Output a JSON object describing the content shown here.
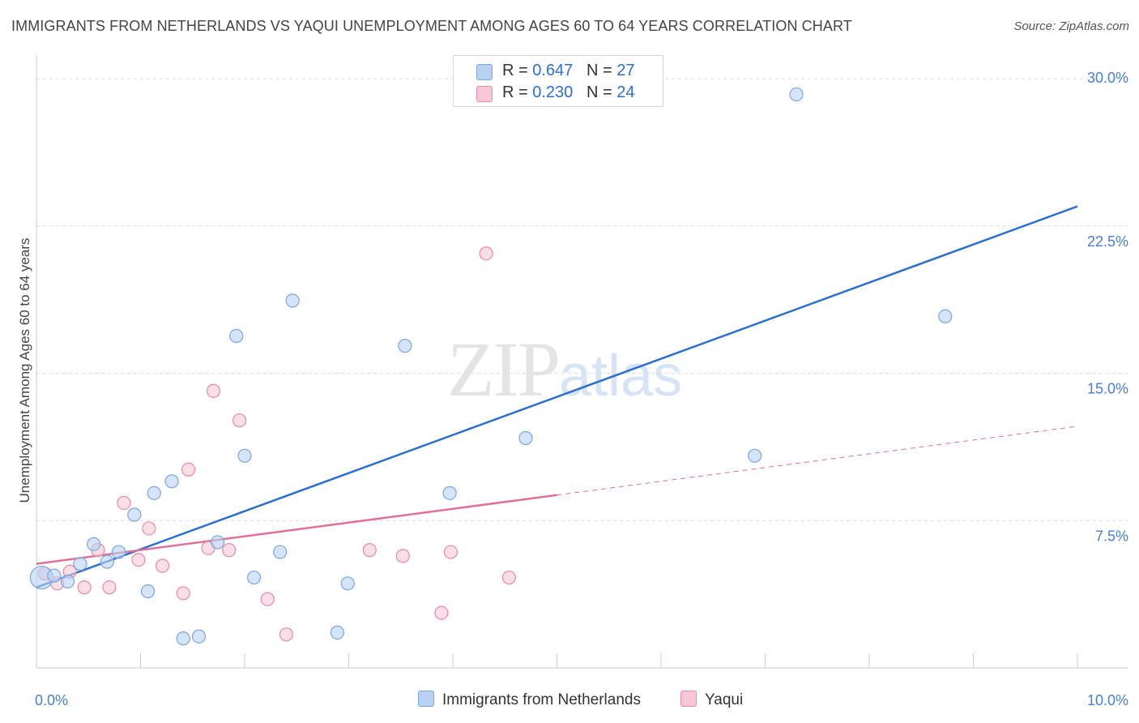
{
  "title": "IMMIGRANTS FROM NETHERLANDS VS YAQUI UNEMPLOYMENT AMONG AGES 60 TO 64 YEARS CORRELATION CHART",
  "source": "Source: ZipAtlas.com",
  "watermark": {
    "zip": "ZIP",
    "atlas": "atlas"
  },
  "colors": {
    "blue_fill": "#b9d2f3",
    "blue_stroke": "#7aa6e0",
    "blue_line": "#2e6fcc",
    "pink_fill": "#f8c8d6",
    "pink_stroke": "#e88aa8",
    "pink_line": "#e0709a",
    "grid": "#dddddd",
    "axis": "#cccccc"
  },
  "legend": {
    "rows": [
      {
        "r_label": "R = ",
        "r_value": "0.647",
        "n_label": "N = ",
        "n_value": "27"
      },
      {
        "r_label": "R = ",
        "r_value": "0.230",
        "n_label": "N = ",
        "n_value": "24"
      }
    ]
  },
  "chart_data": {
    "type": "scatter",
    "title": "IMMIGRANTS FROM NETHERLANDS VS YAQUI UNEMPLOYMENT AMONG AGES 60 TO 64 YEARS CORRELATION CHART",
    "xlabel": "",
    "ylabel": "Unemployment Among Ages 60 to 64 years",
    "xlim": [
      0,
      10
    ],
    "ylim": [
      0,
      31.2
    ],
    "x_tick_labels": [
      "0.0%",
      "10.0%"
    ],
    "y_ticks": [
      7.5,
      15.0,
      22.5,
      30.0
    ],
    "y_tick_labels": [
      "7.5%",
      "15.0%",
      "22.5%",
      "30.0%"
    ],
    "series": [
      {
        "name": "Immigrants from Netherlands",
        "color": "blue",
        "r": 0.647,
        "n": 27,
        "points": [
          [
            0.05,
            4.6,
            14
          ],
          [
            0.17,
            4.7,
            8
          ],
          [
            0.3,
            4.4,
            8
          ],
          [
            0.42,
            5.3,
            8
          ],
          [
            0.55,
            6.3,
            8
          ],
          [
            0.68,
            5.4,
            8
          ],
          [
            0.79,
            5.9,
            8
          ],
          [
            0.94,
            7.8,
            8
          ],
          [
            1.07,
            3.9,
            8
          ],
          [
            1.13,
            8.9,
            8
          ],
          [
            1.3,
            9.5,
            8
          ],
          [
            1.41,
            1.5,
            8
          ],
          [
            1.56,
            1.6,
            8
          ],
          [
            1.74,
            6.4,
            8
          ],
          [
            1.92,
            16.9,
            8
          ],
          [
            2.0,
            10.8,
            8
          ],
          [
            2.09,
            4.6,
            8
          ],
          [
            2.34,
            5.9,
            8
          ],
          [
            2.46,
            18.7,
            8
          ],
          [
            2.99,
            4.3,
            8
          ],
          [
            2.89,
            1.8,
            8
          ],
          [
            3.54,
            16.4,
            8
          ],
          [
            3.97,
            8.9,
            8
          ],
          [
            4.7,
            11.7,
            8
          ],
          [
            6.9,
            10.8,
            8
          ],
          [
            7.3,
            29.2,
            8
          ],
          [
            8.73,
            17.9,
            8
          ]
        ],
        "trend": {
          "x": [
            0.0,
            10.0
          ],
          "y": [
            4.1,
            23.5
          ],
          "dashed_from": null
        }
      },
      {
        "name": "Yaqui",
        "color": "pink",
        "r": 0.23,
        "n": 24,
        "points": [
          [
            0.08,
            4.8,
            8
          ],
          [
            0.2,
            4.3,
            8
          ],
          [
            0.32,
            4.9,
            8
          ],
          [
            0.46,
            4.1,
            8
          ],
          [
            0.59,
            6.0,
            8
          ],
          [
            0.7,
            4.1,
            8
          ],
          [
            0.84,
            8.4,
            8
          ],
          [
            0.98,
            5.5,
            8
          ],
          [
            1.08,
            7.1,
            8
          ],
          [
            1.21,
            5.2,
            8
          ],
          [
            1.41,
            3.8,
            8
          ],
          [
            1.46,
            10.1,
            8
          ],
          [
            1.65,
            6.1,
            8
          ],
          [
            1.7,
            14.1,
            8
          ],
          [
            1.85,
            6.0,
            8
          ],
          [
            1.95,
            12.6,
            8
          ],
          [
            2.22,
            3.5,
            8
          ],
          [
            2.4,
            1.7,
            8
          ],
          [
            3.2,
            6.0,
            8
          ],
          [
            3.52,
            5.7,
            8
          ],
          [
            3.89,
            2.8,
            8
          ],
          [
            3.98,
            5.9,
            8
          ],
          [
            4.32,
            21.1,
            8
          ],
          [
            4.54,
            4.6,
            8
          ]
        ],
        "trend": {
          "x": [
            0.0,
            10.0
          ],
          "y": [
            5.3,
            12.3
          ],
          "dashed_from": 5.0
        }
      }
    ]
  }
}
